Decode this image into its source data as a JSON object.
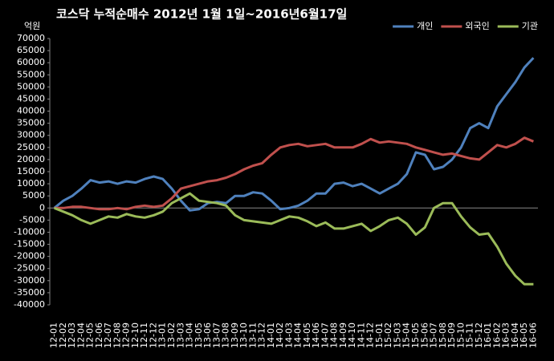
{
  "chart_data": {
    "type": "line",
    "title": "코스닥 누적순매수 2012년 1월 1일~2016년6월17일",
    "y_unit": "억원",
    "categories": [
      "12-01",
      "12-02",
      "12-03",
      "12-04",
      "12-05",
      "12-06",
      "12-07",
      "12-08",
      "12-09",
      "12-10",
      "12-11",
      "12-12",
      "13-01",
      "13-02",
      "13-03",
      "13-04",
      "13-05",
      "13-06",
      "13-07",
      "13-08",
      "13-09",
      "13-10",
      "13-11",
      "13-12",
      "14-01",
      "14-02",
      "14-03",
      "14-04",
      "14-05",
      "14-06",
      "14-07",
      "14-08",
      "14-09",
      "14-10",
      "14-11",
      "14-12",
      "15-01",
      "15-02",
      "15-03",
      "15-04",
      "15-05",
      "15-06",
      "15-07",
      "15-08",
      "15-09",
      "15-10",
      "15-11",
      "15-12",
      "16-01",
      "16-02",
      "16-03",
      "16-04",
      "16-05",
      "16-06"
    ],
    "series": [
      {
        "name": "개인",
        "color": "#4f81bd",
        "values": [
          0,
          3000,
          5000,
          8000,
          11500,
          10500,
          11000,
          10000,
          11000,
          10500,
          12000,
          13000,
          12000,
          8000,
          3000,
          -1000,
          -500,
          2000,
          2500,
          2000,
          5000,
          5000,
          6500,
          6000,
          3000,
          -500,
          0,
          1000,
          3000,
          6000,
          6000,
          10000,
          10500,
          9000,
          10000,
          8000,
          6000,
          8000,
          10000,
          14000,
          23000,
          22000,
          16000,
          17000,
          20000,
          25000,
          33000,
          35000,
          33000,
          42000,
          47000,
          52000,
          58000,
          62000
        ]
      },
      {
        "name": "외국인",
        "color": "#c0504d",
        "values": [
          0,
          0,
          500,
          500,
          0,
          -500,
          -500,
          0,
          -500,
          500,
          1000,
          500,
          1000,
          4000,
          8000,
          9000,
          10000,
          11000,
          11500,
          12500,
          14000,
          16000,
          17500,
          18500,
          22000,
          25000,
          26000,
          26500,
          25500,
          26000,
          26500,
          25000,
          25000,
          25000,
          26500,
          28500,
          27000,
          27500,
          27000,
          26500,
          25000,
          24000,
          23000,
          22000,
          22500,
          21500,
          20500,
          20000,
          23000,
          26000,
          25000,
          26500,
          29000,
          27500
        ]
      },
      {
        "name": "기관",
        "color": "#9bbb59",
        "values": [
          0,
          -1500,
          -3000,
          -5000,
          -6500,
          -5000,
          -3500,
          -4000,
          -2500,
          -3500,
          -4000,
          -3000,
          -1500,
          2000,
          4000,
          6000,
          3000,
          2500,
          2000,
          1000,
          -3000,
          -5000,
          -5500,
          -6000,
          -6500,
          -5000,
          -3500,
          -4000,
          -5500,
          -7500,
          -6000,
          -8500,
          -8500,
          -7500,
          -6500,
          -9500,
          -7500,
          -5000,
          -4000,
          -6500,
          -11000,
          -8000,
          0,
          2000,
          2000,
          -3500,
          -8000,
          -11000,
          -10500,
          -16000,
          -23000,
          -28000,
          -31500,
          -31500
        ]
      }
    ],
    "ylim": [
      -40000,
      70000
    ],
    "yticks": [
      -40000,
      -35000,
      -30000,
      -25000,
      -20000,
      -15000,
      -10000,
      -5000,
      0,
      5000,
      10000,
      15000,
      20000,
      25000,
      30000,
      35000,
      40000,
      45000,
      50000,
      55000,
      60000,
      65000,
      70000
    ],
    "legend": "top-right"
  }
}
